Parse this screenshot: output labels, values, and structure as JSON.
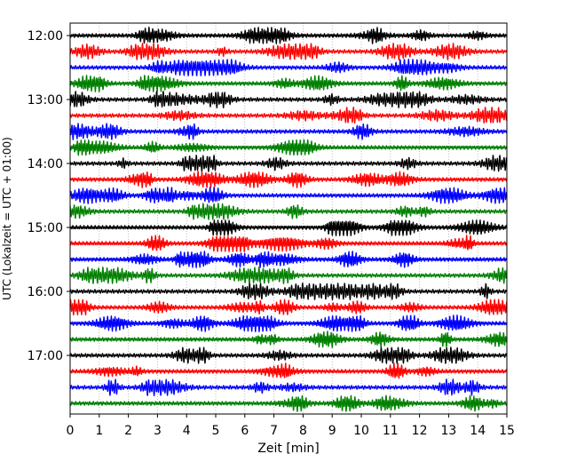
{
  "chart_data": {
    "type": "line",
    "title": "",
    "xlabel": "Zeit  [min]",
    "ylabel": "UTC (Lokalzeit = UTC + 01:00)",
    "xlim": [
      0,
      15
    ],
    "x_ticks": [
      "0",
      "1",
      "2",
      "3",
      "4",
      "5",
      "6",
      "7",
      "8",
      "9",
      "10",
      "11",
      "12",
      "13",
      "14",
      "15"
    ],
    "y_ticks": [
      "12:00",
      "13:00",
      "14:00",
      "15:00",
      "16:00",
      "17:00"
    ],
    "grid": true,
    "trace_interval_minutes": 15,
    "trace_colors": [
      "#000000",
      "#ff0000",
      "#0000ff",
      "#008000"
    ],
    "series": [
      {
        "start": "12:00"
      },
      {
        "start": "12:15"
      },
      {
        "start": "12:30"
      },
      {
        "start": "12:45"
      },
      {
        "start": "13:00"
      },
      {
        "start": "13:15"
      },
      {
        "start": "13:30"
      },
      {
        "start": "13:45"
      },
      {
        "start": "14:00"
      },
      {
        "start": "14:15"
      },
      {
        "start": "14:30"
      },
      {
        "start": "14:45"
      },
      {
        "start": "15:00"
      },
      {
        "start": "15:15"
      },
      {
        "start": "15:30"
      },
      {
        "start": "15:45"
      },
      {
        "start": "16:00"
      },
      {
        "start": "16:15"
      },
      {
        "start": "16:30"
      },
      {
        "start": "16:45"
      },
      {
        "start": "17:00"
      },
      {
        "start": "17:15"
      },
      {
        "start": "17:30"
      },
      {
        "start": "17:45"
      }
    ]
  }
}
